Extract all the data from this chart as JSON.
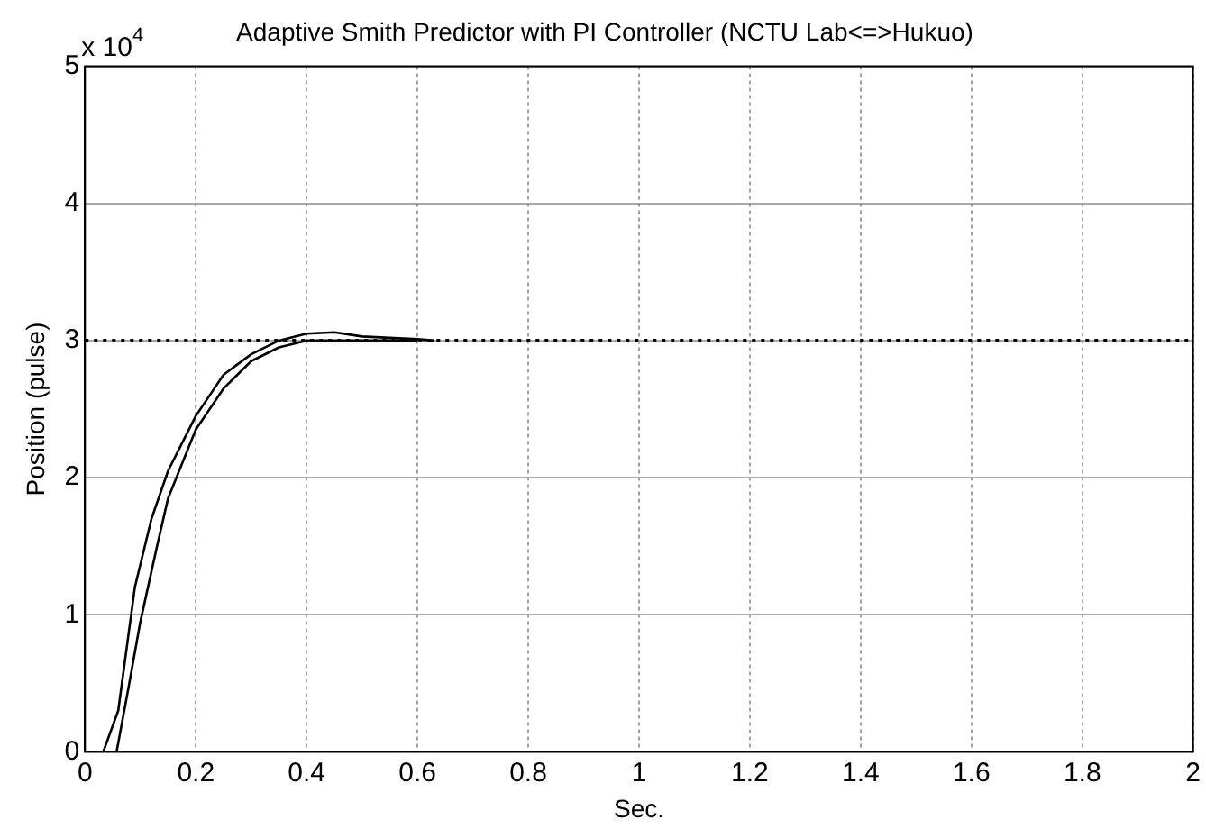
{
  "chart_data": {
    "type": "line",
    "title": "Adaptive Smith Predictor with PI Controller (NCTU Lab<=>Hukuo)",
    "xlabel": "Sec.",
    "ylabel": "Position (pulse)",
    "annotations": [
      "x 10$^{4}$"
    ],
    "series": [
      {
        "color": "#000000",
        "x": [
          0.033,
          0.06,
          0.09,
          0.12,
          0.15,
          0.2,
          0.25,
          0.3,
          0.35,
          0.4,
          0.45,
          0.5,
          0.55,
          0.6,
          0.63
        ],
        "values": [
          0,
          0.3,
          1.2,
          1.7,
          2.05,
          2.45,
          2.75,
          2.9,
          3.0,
          3.05,
          3.06,
          3.03,
          3.02,
          3.01,
          3.0
        ]
      },
      {
        "color": "#000000",
        "x": [
          0.057,
          0.08,
          0.1,
          0.13,
          0.15,
          0.2,
          0.25,
          0.3,
          0.35,
          0.4,
          0.5,
          0.6
        ],
        "values": [
          0,
          0.5,
          0.95,
          1.5,
          1.85,
          2.35,
          2.65,
          2.85,
          2.95,
          3.0,
          3.0,
          3.0
        ]
      }
    ],
    "ref_lines": [
      {
        "axis": "y",
        "value": 3,
        "color": "#000000",
        "line_style": "dotted"
      }
    ],
    "xlim": [
      0,
      2
    ],
    "xticks": [
      0,
      0.2,
      0.4,
      0.6,
      0.8,
      1,
      1.2,
      1.4,
      1.6,
      1.8,
      2
    ],
    "ylim": [
      0,
      5
    ],
    "yticks": [
      0,
      1,
      2,
      3,
      4,
      5
    ],
    "grid": true,
    "legend": false,
    "marker": "none",
    "line_style": "solid"
  }
}
